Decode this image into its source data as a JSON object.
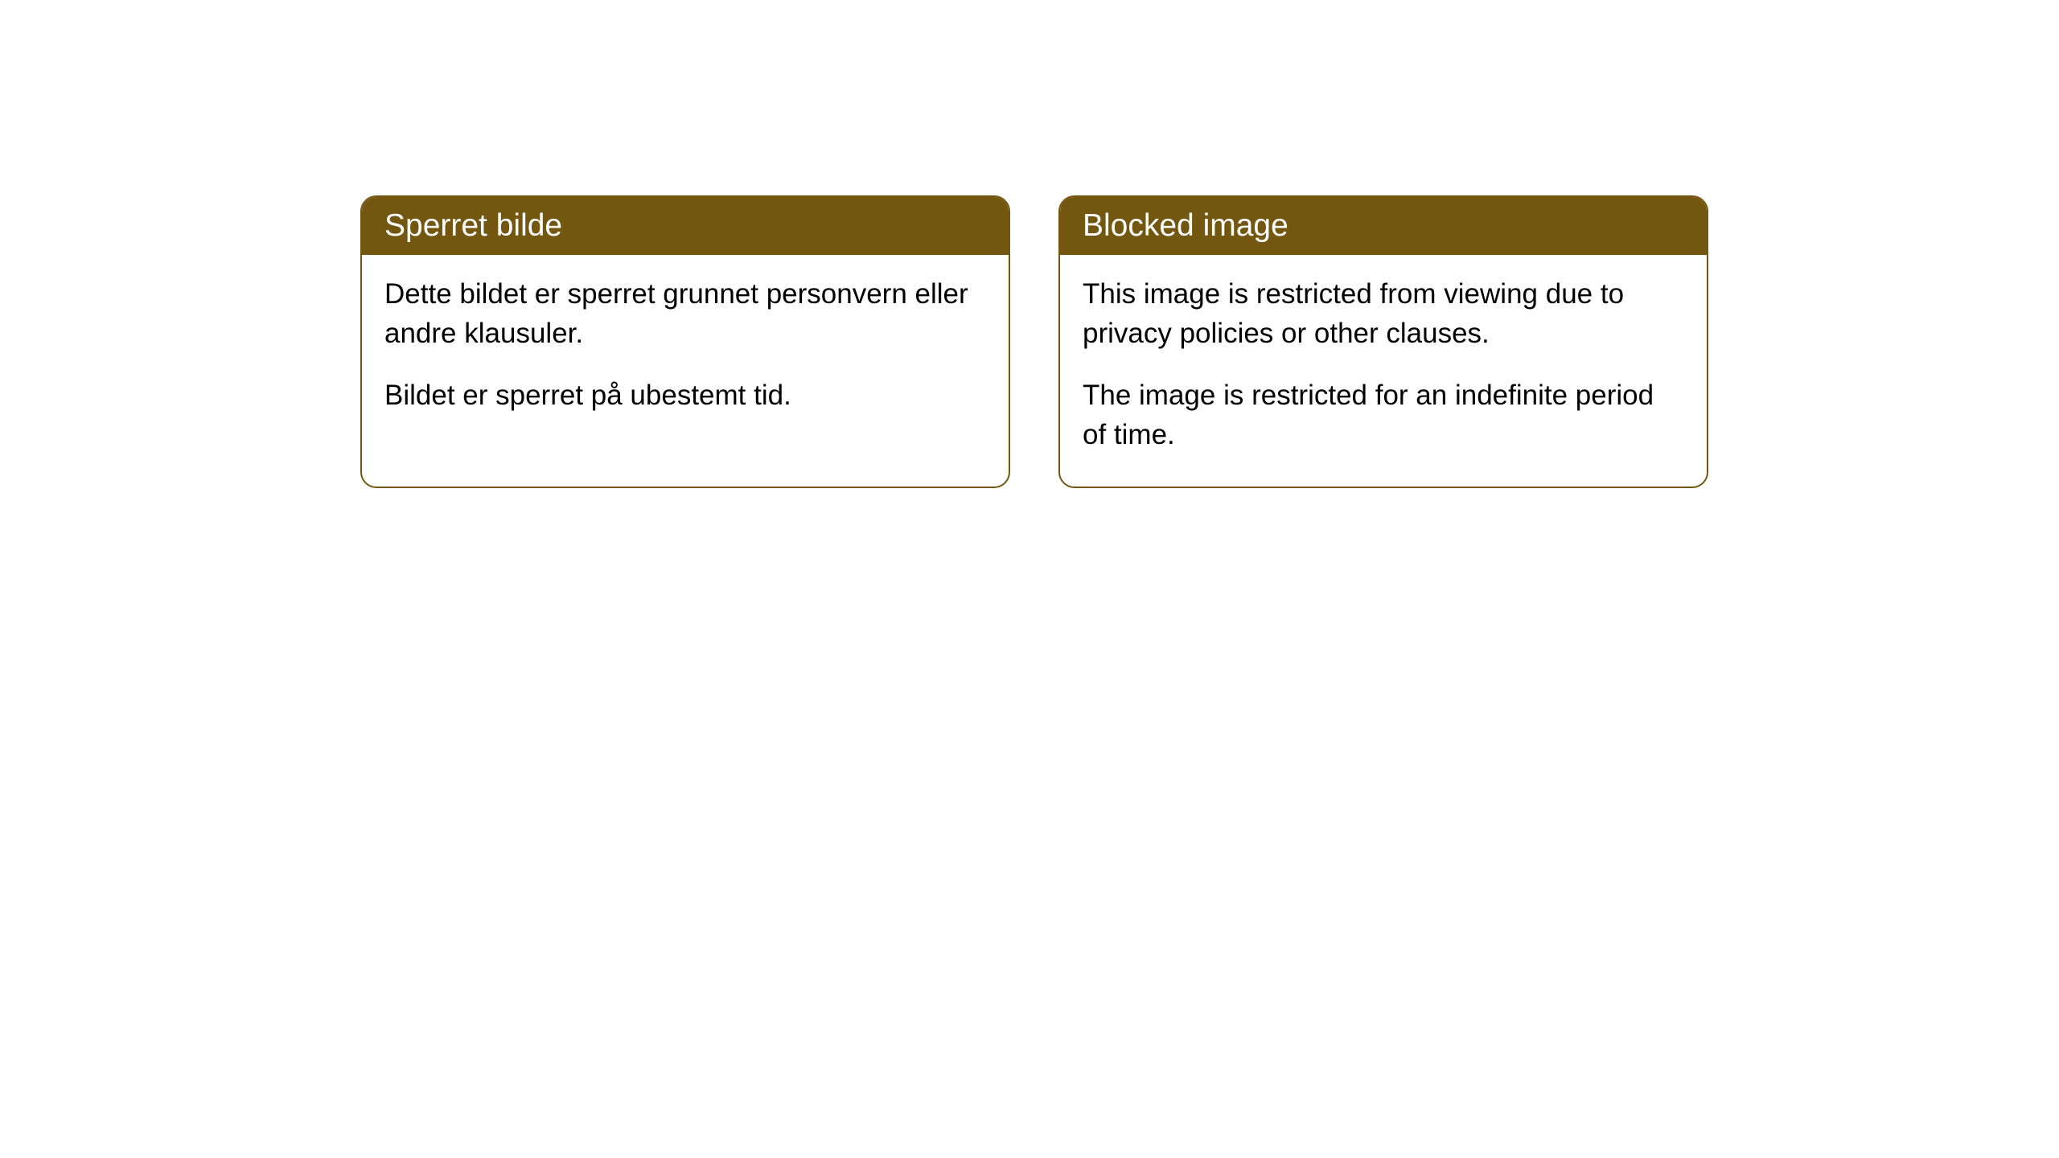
{
  "cards": [
    {
      "title": "Sperret bilde",
      "paragraph1": "Dette bildet er sperret grunnet personvern eller andre klausuler.",
      "paragraph2": "Bildet er sperret på ubestemt tid."
    },
    {
      "title": "Blocked image",
      "paragraph1": "This image is restricted from viewing due to privacy policies or other clauses.",
      "paragraph2": "The image is restricted for an indefinite period of time."
    }
  ],
  "styling": {
    "header_background": "#735610",
    "header_text_color": "#ffffff",
    "border_color": "#735610",
    "body_text_color": "#000000",
    "background_color": "#ffffff",
    "border_radius": 20,
    "title_fontsize": 39,
    "body_fontsize": 35
  }
}
